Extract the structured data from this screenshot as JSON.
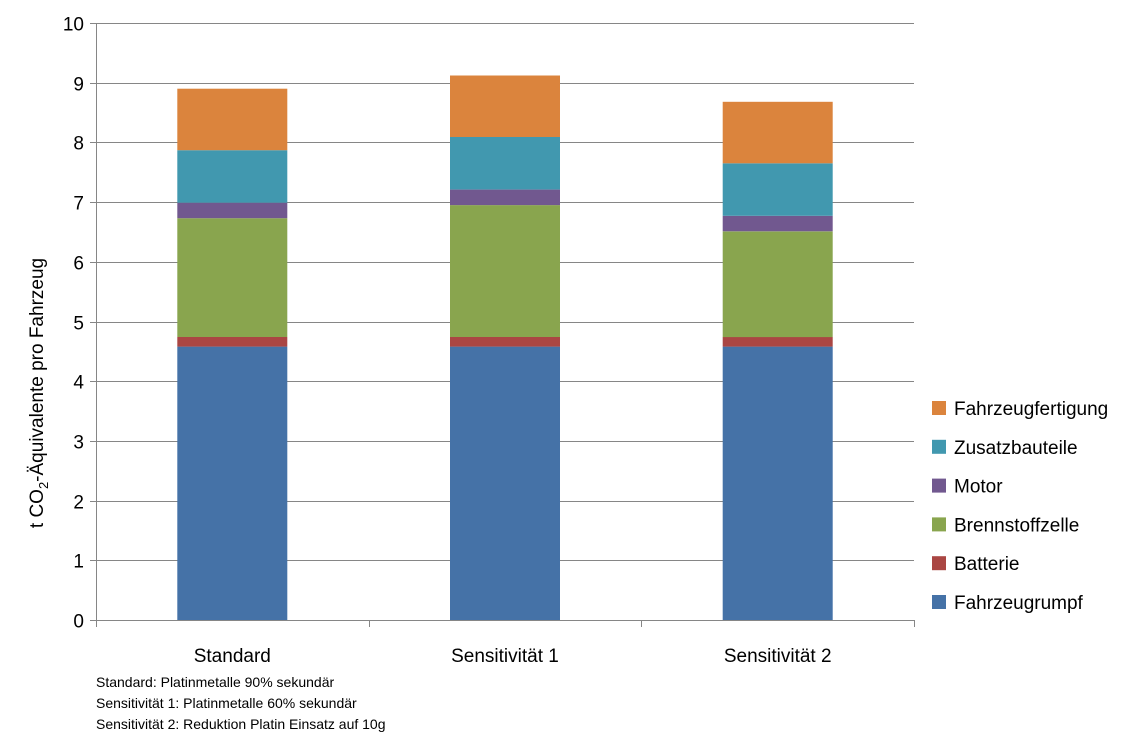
{
  "chart_data": {
    "type": "bar",
    "stacked": true,
    "title": "",
    "xlabel": "",
    "ylabel": {
      "prefix": "t CO",
      "subscript": "2",
      "suffix": "-Äquivalente pro Fahrzeug"
    },
    "ylim": [
      0,
      10
    ],
    "yticks": [
      "0",
      "1",
      "2",
      "3",
      "4",
      "5",
      "6",
      "7",
      "8",
      "9",
      "10"
    ],
    "grid": true,
    "legend_position": "right",
    "categories": [
      "Standard",
      "Sensitivität 1",
      "Sensitivität 2"
    ],
    "series": [
      {
        "name": "Fahrzeugrumpf",
        "color": "#4572A7",
        "values": [
          4.58,
          4.58,
          4.58
        ]
      },
      {
        "name": "Batterie",
        "color": "#AA4643",
        "values": [
          0.16,
          0.16,
          0.16
        ]
      },
      {
        "name": "Brennstoffzelle",
        "color": "#89A54E",
        "values": [
          1.99,
          2.21,
          1.77
        ]
      },
      {
        "name": "Motor",
        "color": "#71588F",
        "values": [
          0.26,
          0.26,
          0.26
        ]
      },
      {
        "name": "Zusatzbauteile",
        "color": "#4198AF",
        "values": [
          0.88,
          0.88,
          0.88
        ]
      },
      {
        "name": "Fahrzeugfertigung",
        "color": "#DB843D",
        "values": [
          1.03,
          1.03,
          1.03
        ]
      }
    ],
    "notes": [
      "Standard: Platinmetalle 90% sekundär",
      "Sensitivität 1: Platinmetalle 60% sekundär",
      "Sensitivität 2: Reduktion Platin Einsatz auf 10g"
    ]
  }
}
